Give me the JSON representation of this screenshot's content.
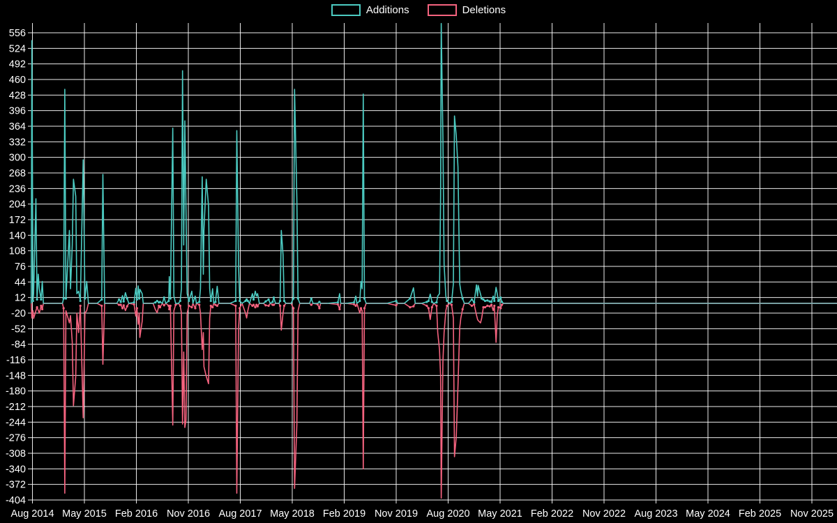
{
  "page": {
    "background": "#000000"
  },
  "legend": {
    "items": [
      {
        "label": "Additions",
        "color": "#4ccbc2"
      },
      {
        "label": "Deletions",
        "color": "#f5637f"
      }
    ]
  },
  "chart_data": {
    "type": "line",
    "title": "",
    "legend_position": "top-center",
    "grid": true,
    "colors": {
      "additions": "#4ccbc2",
      "deletions": "#f5637f",
      "overlap_zero_line": "#7fabae",
      "grid": "#ffffff",
      "text": "#ffffff",
      "background": "#000000"
    },
    "x_axis": {
      "unit": "months since Aug 2014",
      "tick_interval_months": 9,
      "range_months": [
        0,
        135
      ],
      "tick_labels": [
        "Aug 2014",
        "May 2015",
        "Feb 2016",
        "Nov 2016",
        "Aug 2017",
        "May 2018",
        "Feb 2019",
        "Nov 2019",
        "Aug 2020",
        "May 2021",
        "Feb 2022",
        "Nov 2022",
        "Aug 2023",
        "May 2024",
        "Feb 2025",
        "Nov 2025"
      ]
    },
    "y_axis": {
      "min": -404,
      "max": 556,
      "step": 32,
      "tick_labels": [
        556,
        524,
        492,
        460,
        428,
        396,
        364,
        332,
        300,
        268,
        236,
        204,
        172,
        140,
        108,
        76,
        44,
        12,
        -20,
        -52,
        -84,
        -116,
        -148,
        -180,
        -212,
        -244,
        -276,
        -308,
        -340,
        -372,
        -404
      ]
    },
    "series_names": [
      "Additions",
      "Deletions"
    ],
    "deletions_sign": "negative (plotted below zero)",
    "points_format": [
      "t_months_since_Aug2014",
      "additions",
      "deletions"
    ],
    "points": [
      [
        -0.2,
        0,
        0
      ],
      [
        -0.1,
        540,
        -30
      ],
      [
        0.1,
        5,
        -15
      ],
      [
        0.2,
        20,
        -31
      ],
      [
        0.6,
        215,
        -15
      ],
      [
        0.8,
        8,
        -8
      ],
      [
        1.0,
        60,
        -14
      ],
      [
        1.2,
        30,
        -20
      ],
      [
        1.5,
        8,
        -5
      ],
      [
        1.7,
        45,
        -12
      ],
      [
        1.9,
        0,
        0
      ],
      [
        3.4,
        0,
        0
      ],
      [
        5.2,
        0,
        0
      ],
      [
        5.4,
        10,
        -10
      ],
      [
        5.6,
        440,
        -390
      ],
      [
        5.8,
        10,
        -15
      ],
      [
        6.4,
        150,
        -40
      ],
      [
        6.6,
        30,
        -25
      ],
      [
        6.9,
        120,
        -80
      ],
      [
        7.1,
        255,
        -210
      ],
      [
        7.5,
        220,
        -150
      ],
      [
        7.7,
        20,
        -20
      ],
      [
        8.0,
        25,
        -60
      ],
      [
        8.3,
        5,
        -5
      ],
      [
        8.8,
        295,
        -235
      ],
      [
        9.1,
        10,
        -20
      ],
      [
        9.4,
        45,
        -15
      ],
      [
        9.7,
        0,
        0
      ],
      [
        11.2,
        0,
        0
      ],
      [
        12.0,
        8,
        -5
      ],
      [
        12.2,
        265,
        -125
      ],
      [
        12.5,
        0,
        0
      ],
      [
        14.6,
        0,
        0
      ],
      [
        15.0,
        8,
        -3
      ],
      [
        15.3,
        3,
        -3
      ],
      [
        15.6,
        16,
        -10
      ],
      [
        15.8,
        4,
        -4
      ],
      [
        16.1,
        22,
        -15
      ],
      [
        16.4,
        10,
        -6
      ],
      [
        16.7,
        0,
        0
      ],
      [
        17.6,
        2,
        -2
      ],
      [
        17.9,
        31,
        -26
      ],
      [
        18.1,
        8,
        -10
      ],
      [
        18.3,
        36,
        -43
      ],
      [
        18.5,
        10,
        -20
      ],
      [
        18.6,
        29,
        -70
      ],
      [
        19.0,
        20,
        -37
      ],
      [
        19.2,
        0,
        0
      ],
      [
        20.9,
        0,
        0
      ],
      [
        21.3,
        2,
        -13
      ],
      [
        21.6,
        5,
        -19
      ],
      [
        21.9,
        2,
        -5
      ],
      [
        22.1,
        3,
        -8
      ],
      [
        22.5,
        0,
        0
      ],
      [
        22.8,
        12,
        -4
      ],
      [
        23.1,
        0,
        0
      ],
      [
        23.6,
        5,
        -5
      ],
      [
        23.7,
        55,
        -12
      ],
      [
        23.9,
        10,
        -5
      ],
      [
        24.3,
        360,
        -250
      ],
      [
        24.5,
        15,
        -15
      ],
      [
        24.8,
        0,
        -3
      ],
      [
        25.3,
        0,
        0
      ],
      [
        25.6,
        5,
        -5
      ],
      [
        25.8,
        30,
        -20
      ],
      [
        26.0,
        478,
        -248
      ],
      [
        26.2,
        120,
        -100
      ],
      [
        26.4,
        375,
        -255
      ],
      [
        26.6,
        190,
        -240
      ],
      [
        26.8,
        20,
        -20
      ],
      [
        27.1,
        5,
        -5
      ],
      [
        27.6,
        25,
        -8
      ],
      [
        27.8,
        0,
        0
      ],
      [
        28.2,
        15,
        -10
      ],
      [
        28.4,
        0,
        0
      ],
      [
        28.9,
        3,
        -3
      ],
      [
        29.1,
        30,
        -20
      ],
      [
        29.4,
        260,
        -95
      ],
      [
        29.6,
        60,
        -60
      ],
      [
        29.7,
        150,
        -130
      ],
      [
        30.1,
        255,
        -150
      ],
      [
        30.5,
        200,
        -165
      ],
      [
        30.7,
        30,
        -30
      ],
      [
        30.9,
        5,
        -5
      ],
      [
        31.2,
        30,
        -8
      ],
      [
        31.4,
        0,
        0
      ],
      [
        31.7,
        3,
        -3
      ],
      [
        32.0,
        35,
        -5
      ],
      [
        32.3,
        0,
        0
      ],
      [
        34.2,
        0,
        0
      ],
      [
        35.2,
        5,
        -5
      ],
      [
        35.4,
        355,
        -390
      ],
      [
        35.7,
        75,
        -50
      ],
      [
        35.9,
        5,
        -10
      ],
      [
        36.3,
        0,
        0
      ],
      [
        36.9,
        5,
        -20
      ],
      [
        37.1,
        8,
        -30
      ],
      [
        37.3,
        5,
        -15
      ],
      [
        37.6,
        0,
        0
      ],
      [
        38.1,
        20,
        -5
      ],
      [
        38.3,
        8,
        -3
      ],
      [
        38.6,
        25,
        -8
      ],
      [
        38.8,
        15,
        -3
      ],
      [
        39.0,
        20,
        -6
      ],
      [
        39.3,
        0,
        0
      ],
      [
        40.0,
        0,
        0
      ],
      [
        40.4,
        4,
        -4
      ],
      [
        40.9,
        8,
        -5
      ],
      [
        41.2,
        0,
        0
      ],
      [
        41.6,
        3,
        -3
      ],
      [
        41.8,
        12,
        -3
      ],
      [
        42.1,
        0,
        0
      ],
      [
        42.7,
        0,
        0
      ],
      [
        42.9,
        5,
        -5
      ],
      [
        43.1,
        150,
        -55
      ],
      [
        43.4,
        100,
        -20
      ],
      [
        43.6,
        5,
        -5
      ],
      [
        43.9,
        0,
        0
      ],
      [
        44.8,
        0,
        0
      ],
      [
        45.2,
        10,
        -10
      ],
      [
        45.4,
        440,
        -380
      ],
      [
        45.8,
        215,
        -250
      ],
      [
        46.0,
        10,
        -15
      ],
      [
        46.3,
        0,
        0
      ],
      [
        48.0,
        0,
        0
      ],
      [
        48.3,
        10,
        -3
      ],
      [
        48.6,
        0,
        0
      ],
      [
        49.4,
        0,
        -2
      ],
      [
        49.7,
        3,
        -10
      ],
      [
        49.9,
        0,
        0
      ],
      [
        51.1,
        0,
        0
      ],
      [
        52.9,
        2,
        -2
      ],
      [
        53.2,
        20,
        -12
      ],
      [
        53.4,
        0,
        0
      ],
      [
        54.4,
        0,
        0
      ],
      [
        55.7,
        2,
        -2
      ],
      [
        56.0,
        15,
        -5
      ],
      [
        56.2,
        0,
        0
      ],
      [
        56.7,
        5,
        -20
      ],
      [
        56.9,
        45,
        -10
      ],
      [
        57.1,
        30,
        -15
      ],
      [
        57.3,
        430,
        -340
      ],
      [
        57.5,
        10,
        -10
      ],
      [
        57.8,
        0,
        0
      ],
      [
        59.6,
        0,
        0
      ],
      [
        61.4,
        0,
        0
      ],
      [
        63.0,
        5,
        -4
      ],
      [
        63.3,
        0,
        0
      ],
      [
        64.4,
        0,
        0
      ],
      [
        65.4,
        10,
        -8
      ],
      [
        66.0,
        32,
        -6
      ],
      [
        66.3,
        0,
        0
      ],
      [
        67.4,
        0,
        0
      ],
      [
        68.3,
        3,
        -5
      ],
      [
        68.6,
        5,
        -10
      ],
      [
        68.9,
        19,
        -33
      ],
      [
        69.2,
        3,
        -8
      ],
      [
        69.5,
        0,
        0
      ],
      [
        70.0,
        2,
        -5
      ],
      [
        70.2,
        15,
        -60
      ],
      [
        70.5,
        20,
        -95
      ],
      [
        70.7,
        220,
        -150
      ],
      [
        70.8,
        575,
        -400
      ],
      [
        71.1,
        340,
        -120
      ],
      [
        71.3,
        80,
        -60
      ],
      [
        71.6,
        15,
        -15
      ],
      [
        71.8,
        5,
        -5
      ],
      [
        72.3,
        0,
        0
      ],
      [
        72.6,
        3,
        -3
      ],
      [
        72.9,
        40,
        -30
      ],
      [
        73.1,
        385,
        -315
      ],
      [
        73.4,
        345,
        -275
      ],
      [
        73.7,
        280,
        -170
      ],
      [
        74.0,
        40,
        -50
      ],
      [
        74.2,
        25,
        -30
      ],
      [
        74.5,
        10,
        -12
      ],
      [
        74.8,
        0,
        0
      ],
      [
        75.5,
        0,
        0
      ],
      [
        76.1,
        8,
        -5
      ],
      [
        76.5,
        2,
        -2
      ],
      [
        76.9,
        38,
        -24
      ],
      [
        77.1,
        15,
        -33
      ],
      [
        77.2,
        37,
        -35
      ],
      [
        77.6,
        19,
        -40
      ],
      [
        77.8,
        10,
        -31
      ],
      [
        78.1,
        8,
        -8
      ],
      [
        78.4,
        5,
        -8
      ],
      [
        78.8,
        6,
        -5
      ],
      [
        79.2,
        4,
        -6
      ],
      [
        79.5,
        3,
        -3
      ],
      [
        79.8,
        15,
        -15
      ],
      [
        80.0,
        5,
        -5
      ],
      [
        80.3,
        33,
        -80
      ],
      [
        80.5,
        20,
        -25
      ],
      [
        80.7,
        5,
        -8
      ],
      [
        81.1,
        12,
        -10
      ],
      [
        81.3,
        3,
        -3
      ],
      [
        81.6,
        0,
        0
      ],
      [
        83.8,
        0,
        0
      ],
      [
        89.8,
        0,
        0
      ],
      [
        98.7,
        0,
        0
      ],
      [
        107.7,
        0,
        0
      ],
      [
        116.6,
        0,
        0
      ],
      [
        125.7,
        0,
        0
      ],
      [
        134.8,
        0,
        0
      ],
      [
        139.4,
        0,
        0
      ]
    ]
  }
}
